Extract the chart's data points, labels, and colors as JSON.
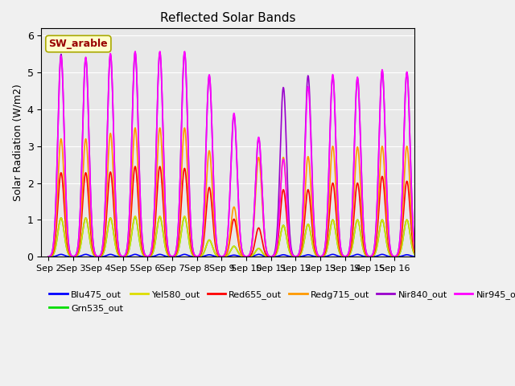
{
  "title": "Reflected Solar Bands",
  "ylabel": "Solar Radiation (W/m2)",
  "xlabel": "",
  "annotation": "SW_arable",
  "ylim": [
    0,
    6.2
  ],
  "background_color": "#e8e8e8",
  "series": {
    "Blu475_out": {
      "color": "#0000ff",
      "lw": 1.2
    },
    "Grn535_out": {
      "color": "#00dd00",
      "lw": 1.2
    },
    "Yel580_out": {
      "color": "#dddd00",
      "lw": 1.2
    },
    "Red655_out": {
      "color": "#ff0000",
      "lw": 1.2
    },
    "Redg715_out": {
      "color": "#ff9900",
      "lw": 1.2
    },
    "Nir840_out": {
      "color": "#9900cc",
      "lw": 1.2
    },
    "Nir945_out": {
      "color": "#ff00ff",
      "lw": 1.2
    }
  },
  "xtick_labels": [
    "Sep 2",
    "Sep 3",
    "Sep 4",
    "Sep 5",
    "Sep 6",
    "Sep 7",
    "Sep 8",
    "Sep 9",
    "Sep 10",
    "Sep 11",
    "Sep 12",
    "Sep 13",
    "Sep 14",
    "Sep 15",
    "Sep 16"
  ],
  "num_days": 15,
  "day_peaks": {
    "Blu475_out": [
      0.06,
      0.06,
      0.06,
      0.06,
      0.06,
      0.06,
      0.05,
      0.04,
      0.06,
      0.05,
      0.05,
      0.06,
      0.06,
      0.06,
      0.05
    ],
    "Grn535_out": [
      1.05,
      1.05,
      1.05,
      1.08,
      1.08,
      1.08,
      0.45,
      0.28,
      0.22,
      0.85,
      0.88,
      1.0,
      1.0,
      1.0,
      1.0
    ],
    "Yel580_out": [
      1.05,
      1.05,
      1.05,
      1.1,
      1.1,
      1.1,
      0.45,
      0.28,
      0.22,
      0.85,
      0.88,
      1.0,
      1.0,
      1.0,
      1.0
    ],
    "Red655_out": [
      2.28,
      2.28,
      2.3,
      2.45,
      2.45,
      2.4,
      1.88,
      1.02,
      0.78,
      1.82,
      1.82,
      2.0,
      2.0,
      2.18,
      2.05
    ],
    "Redg715_out": [
      3.2,
      3.2,
      3.35,
      3.5,
      3.5,
      3.5,
      2.88,
      1.35,
      2.7,
      2.7,
      2.72,
      3.0,
      2.98,
      3.0,
      3.0
    ],
    "Nir840_out": [
      5.5,
      5.4,
      5.5,
      5.55,
      5.55,
      5.55,
      4.92,
      3.85,
      3.22,
      4.6,
      4.92,
      4.9,
      4.85,
      5.05,
      5.0
    ],
    "Nir945_out": [
      5.45,
      5.42,
      5.52,
      5.58,
      5.58,
      5.58,
      4.95,
      3.9,
      3.25,
      2.65,
      4.62,
      4.95,
      4.88,
      5.08,
      5.02
    ]
  }
}
